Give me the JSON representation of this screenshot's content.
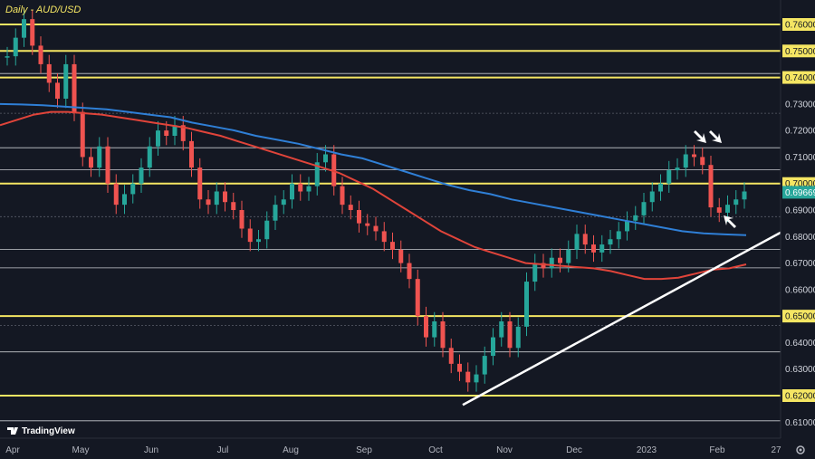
{
  "chart_data": {
    "type": "candlestick",
    "title": "Daily - AUD/USD",
    "brand": "TradingView",
    "current_price": "0.69669",
    "y_ticks": [
      "0.76000",
      "0.75000",
      "0.74000",
      "0.73000",
      "0.72000",
      "0.71000",
      "0.70000",
      "0.69000",
      "0.68000",
      "0.67000",
      "0.66000",
      "0.65000",
      "0.64000",
      "0.63000",
      "0.62000",
      "0.61000"
    ],
    "x_ticks": [
      "Apr",
      "May",
      "Jun",
      "Jul",
      "Aug",
      "Sep",
      "Oct",
      "Nov",
      "Dec",
      "2023",
      "Feb",
      "27"
    ],
    "ylim": [
      0.6055,
      0.7685
    ],
    "key_levels": [
      0.76,
      0.75,
      0.74,
      0.7,
      0.65,
      0.62
    ],
    "minor_levels": [
      0.7415,
      0.7265,
      0.7135,
      0.7052,
      0.6875,
      0.6752,
      0.6682,
      0.6465,
      0.6365,
      0.6105
    ],
    "colors": {
      "background": "#141823",
      "up": "#26a69a",
      "down": "#ef5350",
      "key_level": "#f5e663",
      "ma_fast": "#e0443a",
      "ma_slow": "#2f7fd6",
      "trendline": "#ffffff",
      "price_tag": "#26a69a"
    },
    "price_path": [
      [
        "Apr",
        0.748
      ],
      [
        "Apr",
        0.755
      ],
      [
        "Apr",
        0.762
      ],
      [
        "Apr",
        0.752
      ],
      [
        "Apr",
        0.745
      ],
      [
        "Apr",
        0.738
      ],
      [
        "Apr",
        0.732
      ],
      [
        "Apr",
        0.745
      ],
      [
        "May",
        0.727
      ],
      [
        "May",
        0.71
      ],
      [
        "May",
        0.706
      ],
      [
        "May",
        0.714
      ],
      [
        "May",
        0.7
      ],
      [
        "May",
        0.692
      ],
      [
        "May",
        0.696
      ],
      [
        "May",
        0.7
      ],
      [
        "May",
        0.706
      ],
      [
        "May",
        0.714
      ],
      [
        "Jun",
        0.72
      ],
      [
        "Jun",
        0.718
      ],
      [
        "Jun",
        0.722
      ],
      [
        "Jun",
        0.716
      ],
      [
        "Jun",
        0.706
      ],
      [
        "Jun",
        0.694
      ],
      [
        "Jun",
        0.692
      ],
      [
        "Jun",
        0.697
      ],
      [
        "Jun",
        0.693
      ],
      [
        "Jul",
        0.69
      ],
      [
        "Jul",
        0.683
      ],
      [
        "Jul",
        0.678
      ],
      [
        "Jul",
        0.679
      ],
      [
        "Jul",
        0.686
      ],
      [
        "Jul",
        0.692
      ],
      [
        "Jul",
        0.694
      ],
      [
        "Aug",
        0.7
      ],
      [
        "Aug",
        0.697
      ],
      [
        "Aug",
        0.699
      ],
      [
        "Aug",
        0.708
      ],
      [
        "Aug",
        0.711
      ],
      [
        "Aug",
        0.699
      ],
      [
        "Aug",
        0.692
      ],
      [
        "Aug",
        0.69
      ],
      [
        "Sep",
        0.685
      ],
      [
        "Sep",
        0.684
      ],
      [
        "Sep",
        0.682
      ],
      [
        "Sep",
        0.678
      ],
      [
        "Sep",
        0.675
      ],
      [
        "Sep",
        0.67
      ],
      [
        "Sep",
        0.664
      ],
      [
        "Oct",
        0.65
      ],
      [
        "Oct",
        0.642
      ],
      [
        "Oct",
        0.648
      ],
      [
        "Oct",
        0.638
      ],
      [
        "Oct",
        0.632
      ],
      [
        "Oct",
        0.629
      ],
      [
        "Oct",
        0.625
      ],
      [
        "Oct",
        0.628
      ],
      [
        "Nov",
        0.635
      ],
      [
        "Nov",
        0.642
      ],
      [
        "Nov",
        0.648
      ],
      [
        "Nov",
        0.638
      ],
      [
        "Nov",
        0.646
      ],
      [
        "Nov",
        0.663
      ],
      [
        "Nov",
        0.67
      ],
      [
        "Nov",
        0.668
      ],
      [
        "Dec",
        0.672
      ],
      [
        "Dec",
        0.67
      ],
      [
        "Dec",
        0.675
      ],
      [
        "Dec",
        0.681
      ],
      [
        "Dec",
        0.677
      ],
      [
        "Dec",
        0.674
      ],
      [
        "Dec",
        0.677
      ],
      [
        "Dec",
        0.679
      ],
      [
        "Dec",
        0.682
      ],
      [
        "2023",
        0.686
      ],
      [
        "2023",
        0.688
      ],
      [
        "2023",
        0.693
      ],
      [
        "2023",
        0.697
      ],
      [
        "2023",
        0.7
      ],
      [
        "2023",
        0.705
      ],
      [
        "2023",
        0.706
      ],
      [
        "2023",
        0.711
      ],
      [
        "2023",
        0.71
      ],
      [
        "Feb",
        0.707
      ],
      [
        "Feb",
        0.691
      ],
      [
        "Feb",
        0.689
      ],
      [
        "Feb",
        0.692
      ],
      [
        "Feb",
        0.694
      ],
      [
        "Feb",
        0.697
      ]
    ],
    "ma_fast_path": [
      [
        0.722
      ],
      [
        0.724
      ],
      [
        0.726
      ],
      [
        0.727
      ],
      [
        0.727
      ],
      [
        0.7265
      ],
      [
        0.726
      ],
      [
        0.725
      ],
      [
        0.724
      ],
      [
        0.723
      ],
      [
        0.722
      ],
      [
        0.721
      ],
      [
        0.7195
      ],
      [
        0.718
      ],
      [
        0.716
      ],
      [
        0.714
      ],
      [
        0.712
      ],
      [
        0.71
      ],
      [
        0.708
      ],
      [
        0.706
      ],
      [
        0.704
      ],
      [
        0.701
      ],
      [
        0.698
      ],
      [
        0.694
      ],
      [
        0.69
      ],
      [
        0.686
      ],
      [
        0.682
      ],
      [
        0.679
      ],
      [
        0.676
      ],
      [
        0.674
      ],
      [
        0.672
      ],
      [
        0.67
      ],
      [
        0.6695
      ],
      [
        0.669
      ],
      [
        0.6685
      ],
      [
        0.668
      ],
      [
        0.667
      ],
      [
        0.6655
      ],
      [
        0.664
      ],
      [
        0.664
      ],
      [
        0.6645
      ],
      [
        0.666
      ],
      [
        0.6675
      ],
      [
        0.668
      ],
      [
        0.6695
      ]
    ],
    "ma_slow_path": [
      [
        0.73
      ],
      [
        0.7298
      ],
      [
        0.7295
      ],
      [
        0.729
      ],
      [
        0.7285
      ],
      [
        0.728
      ],
      [
        0.727
      ],
      [
        0.726
      ],
      [
        0.725
      ],
      [
        0.723
      ],
      [
        0.7215
      ],
      [
        0.72
      ],
      [
        0.718
      ],
      [
        0.7165
      ],
      [
        0.715
      ],
      [
        0.713
      ],
      [
        0.711
      ],
      [
        0.7095
      ],
      [
        0.707
      ],
      [
        0.7045
      ],
      [
        0.702
      ],
      [
        0.6995
      ],
      [
        0.6975
      ],
      [
        0.696
      ],
      [
        0.694
      ],
      [
        0.6925
      ],
      [
        0.691
      ],
      [
        0.6895
      ],
      [
        0.688
      ],
      [
        0.6865
      ],
      [
        0.685
      ],
      [
        0.6835
      ],
      [
        0.682
      ],
      [
        0.6812
      ],
      [
        0.6808
      ],
      [
        0.6805
      ]
    ],
    "trendline": [
      [
        0.6165
      ],
      [
        0.6815
      ]
    ],
    "arrows": 3
  }
}
